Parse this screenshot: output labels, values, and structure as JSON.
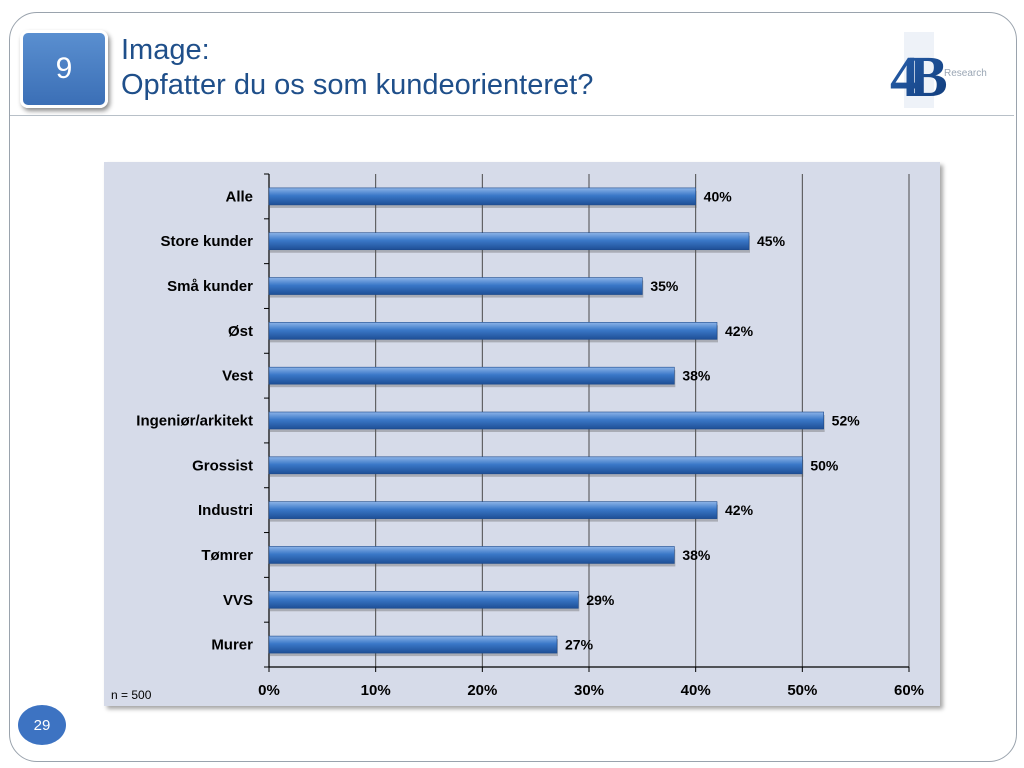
{
  "slide": {
    "badge_number": "9",
    "title_line1": "Image:",
    "title_line2": "Opfatter du os som kundeorienteret?",
    "logo_text": "4B",
    "logo_subtext": "Research",
    "page_number": "29",
    "sample_note": "n = 500"
  },
  "colors": {
    "title": "#1f4f8a",
    "bar": "#3a78c8",
    "chart_background": "#d6dbe9",
    "badge": "#4a80c6"
  },
  "chart_data": {
    "type": "bar",
    "orientation": "horizontal",
    "categories": [
      "Alle",
      "Store kunder",
      "Små kunder",
      "Øst",
      "Vest",
      "Ingeniør/arkitekt",
      "Grossist",
      "Industri",
      "Tømrer",
      "VVS",
      "Murer"
    ],
    "values": [
      40,
      45,
      35,
      42,
      38,
      52,
      50,
      42,
      38,
      29,
      27
    ],
    "value_labels": [
      "40%",
      "45%",
      "35%",
      "42%",
      "38%",
      "52%",
      "50%",
      "42%",
      "38%",
      "29%",
      "27%"
    ],
    "x_ticks": [
      "0%",
      "10%",
      "20%",
      "30%",
      "40%",
      "50%",
      "60%"
    ],
    "xlim": [
      0,
      60
    ],
    "grid": true,
    "legend": "none"
  }
}
